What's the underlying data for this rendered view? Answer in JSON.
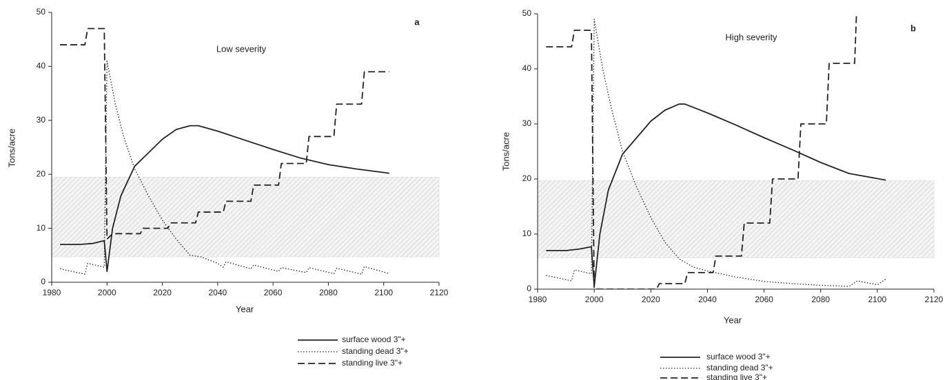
{
  "chart_data": [
    {
      "type": "line",
      "title": "a",
      "annotation": "Low severity",
      "xlabel": "Year",
      "ylabel": "Tons/acre",
      "xlim": [
        1980,
        2120
      ],
      "xticks": [
        1980,
        2000,
        2020,
        2040,
        2060,
        2080,
        2100,
        2120
      ],
      "ylim": [
        0,
        50
      ],
      "yticks": [
        0,
        10,
        20,
        30,
        40,
        50
      ],
      "band": [
        4.7,
        19.5
      ],
      "series": [
        {
          "name": "surface wood 3\"+",
          "color": "#222",
          "style": "solid",
          "x": [
            1983,
            1990,
            1995,
            1999,
            2000,
            2002,
            2005,
            2010,
            2015,
            2020,
            2025,
            2030,
            2033,
            2040,
            2050,
            2060,
            2070,
            2080,
            2090,
            2102
          ],
          "values": [
            7,
            7,
            7.2,
            7.7,
            2,
            10,
            16,
            21.5,
            24,
            26.5,
            28.3,
            29,
            29,
            28,
            26.3,
            24.6,
            23,
            21.8,
            21,
            20.2
          ]
        },
        {
          "name": "standing dead 3\"+",
          "color": "#222",
          "style": "dotted",
          "x": [
            1983,
            1992,
            1993,
            1999,
            2000,
            2003,
            2006,
            2010,
            2015,
            2020,
            2025,
            2030,
            2034,
            2040,
            2042,
            2043,
            2052,
            2053,
            2062,
            2063,
            2072,
            2073,
            2082,
            2083,
            2092,
            2093,
            2102
          ],
          "values": [
            2.5,
            1.5,
            3.5,
            2.8,
            41,
            33,
            27,
            21,
            16,
            11.5,
            8,
            5,
            4.7,
            3.5,
            2.8,
            3.8,
            2.5,
            3.2,
            2,
            2.7,
            1.8,
            2.7,
            1.6,
            2.6,
            1.5,
            2.9,
            1.6
          ]
        },
        {
          "name": "standing live 3\"+",
          "color": "#222",
          "style": "dashed",
          "x": [
            1983,
            1992,
            1993,
            1999,
            2000,
            2002,
            2012,
            2013,
            2022,
            2023,
            2032,
            2033,
            2042,
            2043,
            2052,
            2053,
            2062,
            2063,
            2072,
            2073,
            2082,
            2083,
            2092,
            2093,
            2102
          ],
          "values": [
            44,
            44,
            47,
            47,
            8,
            9,
            9,
            10,
            10,
            11,
            11,
            13,
            13,
            15,
            15,
            18,
            18,
            22,
            22,
            27,
            27,
            33,
            33,
            39,
            39
          ]
        }
      ]
    },
    {
      "type": "line",
      "title": "b",
      "annotation": "High severity",
      "xlabel": "Year",
      "ylabel": "Tons/acre",
      "xlim": [
        1980,
        2120
      ],
      "xticks": [
        1980,
        2000,
        2020,
        2040,
        2060,
        2080,
        2100,
        2120
      ],
      "ylim": [
        0,
        50
      ],
      "yticks": [
        0,
        10,
        20,
        30,
        40,
        50
      ],
      "band": [
        5.7,
        19.7
      ],
      "series": [
        {
          "name": "surface wood 3\"+",
          "color": "#222",
          "style": "solid",
          "x": [
            1983,
            1990,
            1995,
            1999,
            2000,
            2002,
            2005,
            2010,
            2015,
            2020,
            2025,
            2030,
            2032,
            2040,
            2050,
            2060,
            2070,
            2080,
            2090,
            2103
          ],
          "values": [
            7,
            7,
            7.3,
            7.7,
            0.5,
            10,
            18,
            24.5,
            27.5,
            30.5,
            32.5,
            33.6,
            33.6,
            32,
            29.8,
            27.5,
            25.3,
            23,
            21,
            19.8
          ]
        },
        {
          "name": "standing dead 3\"+",
          "color": "#222",
          "style": "dotted",
          "x": [
            1983,
            1992,
            1993,
            1999,
            2000,
            2003,
            2006,
            2010,
            2015,
            2020,
            2025,
            2030,
            2035,
            2040,
            2050,
            2060,
            2070,
            2080,
            2090,
            2093,
            2100,
            2103
          ],
          "values": [
            2.5,
            1.5,
            3.5,
            2.8,
            49,
            40,
            33,
            25,
            18.5,
            13,
            8.5,
            5.5,
            4,
            3.3,
            2.2,
            1.4,
            1,
            0.7,
            0.5,
            1.5,
            0.8,
            1.8
          ]
        },
        {
          "name": "standing live 3\"+",
          "color": "#222",
          "style": "dashed",
          "x": [
            1983,
            1992,
            1993,
            1999,
            2000,
            2022,
            2023,
            2032,
            2033,
            2042,
            2043,
            2052,
            2053,
            2062,
            2063,
            2072,
            2073,
            2082,
            2083,
            2092,
            2093
          ],
          "values": [
            44,
            44,
            47,
            47,
            0,
            0,
            1,
            1,
            3,
            3,
            6,
            6,
            12,
            12,
            20,
            20,
            30,
            30,
            41,
            41,
            55
          ]
        }
      ]
    }
  ]
}
